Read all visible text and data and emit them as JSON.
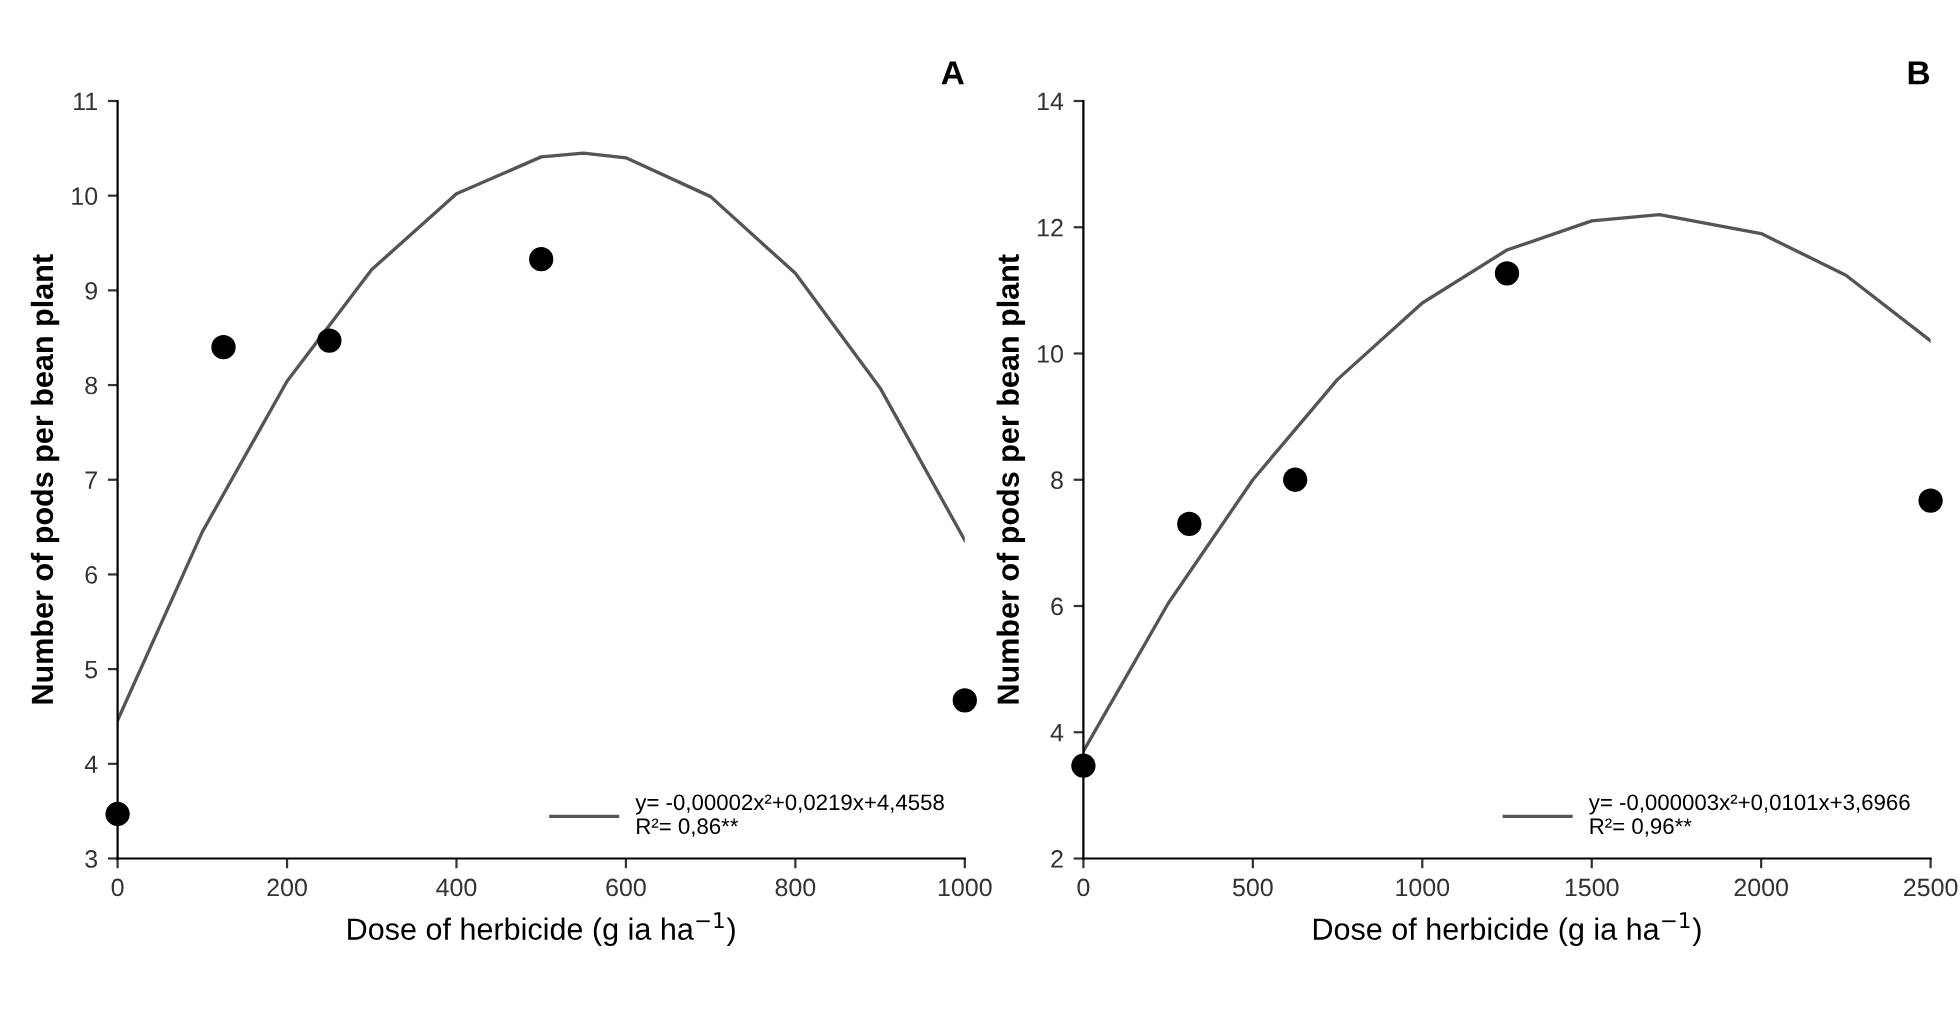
{
  "chart_data": [
    {
      "type": "scatter",
      "title": "A",
      "xlabel": "Dose of herbicide (g ia ha$^{−1}$)",
      "ylabel": "Number of pods per bean plant",
      "xlim": [
        0,
        1000
      ],
      "ylim": [
        3,
        11
      ],
      "xticks": [
        0,
        200,
        400,
        600,
        800,
        1000
      ],
      "yticks": [
        3,
        4,
        5,
        6,
        7,
        8,
        9,
        10,
        11
      ],
      "grid": false,
      "legend": "bottom right",
      "series": [
        {
          "color": "#000000",
          "marker": "circle",
          "x": [
            0,
            125,
            250,
            500,
            1000
          ],
          "values": [
            3.47,
            8.4,
            8.47,
            9.33,
            4.67
          ]
        },
        {
          "type": "line",
          "name": "y= -0,00002x²+0,0219x+4,4558\nR²= 0,86**",
          "color": "#555555",
          "line_style": "solid",
          "x": [
            0,
            100,
            200,
            300,
            400,
            500,
            550,
            600,
            700,
            800,
            900,
            1000
          ],
          "values": [
            4.46,
            6.45,
            8.04,
            9.22,
            10.02,
            10.41,
            10.45,
            10.4,
            9.99,
            9.18,
            7.97,
            6.36
          ]
        }
      ]
    },
    {
      "type": "scatter",
      "title": "B",
      "xlabel": "Dose of herbicide (g ia ha$^{−1}$)",
      "ylabel": "Number of pods per bean plant",
      "xlim": [
        0,
        2500
      ],
      "ylim": [
        2,
        14
      ],
      "xticks": [
        0,
        500,
        1000,
        1500,
        2000,
        2500
      ],
      "yticks": [
        2,
        4,
        6,
        8,
        10,
        12,
        14
      ],
      "grid": false,
      "legend": "bottom right",
      "series": [
        {
          "color": "#000000",
          "marker": "circle",
          "x": [
            0,
            312.5,
            625,
            1250,
            2500
          ],
          "values": [
            3.47,
            7.3,
            8.0,
            11.27,
            7.67
          ]
        },
        {
          "type": "line",
          "name": "y= -0,000003x²+0,0101x+3,6966\nR²= 0,96**",
          "color": "#555555",
          "line_style": "solid",
          "x": [
            0,
            250,
            500,
            750,
            1000,
            1250,
            1500,
            1700,
            2000,
            2250,
            2500
          ],
          "values": [
            3.7,
            6.04,
            8.0,
            9.59,
            10.8,
            11.64,
            12.1,
            12.2,
            11.9,
            11.24,
            10.2
          ]
        }
      ]
    }
  ]
}
